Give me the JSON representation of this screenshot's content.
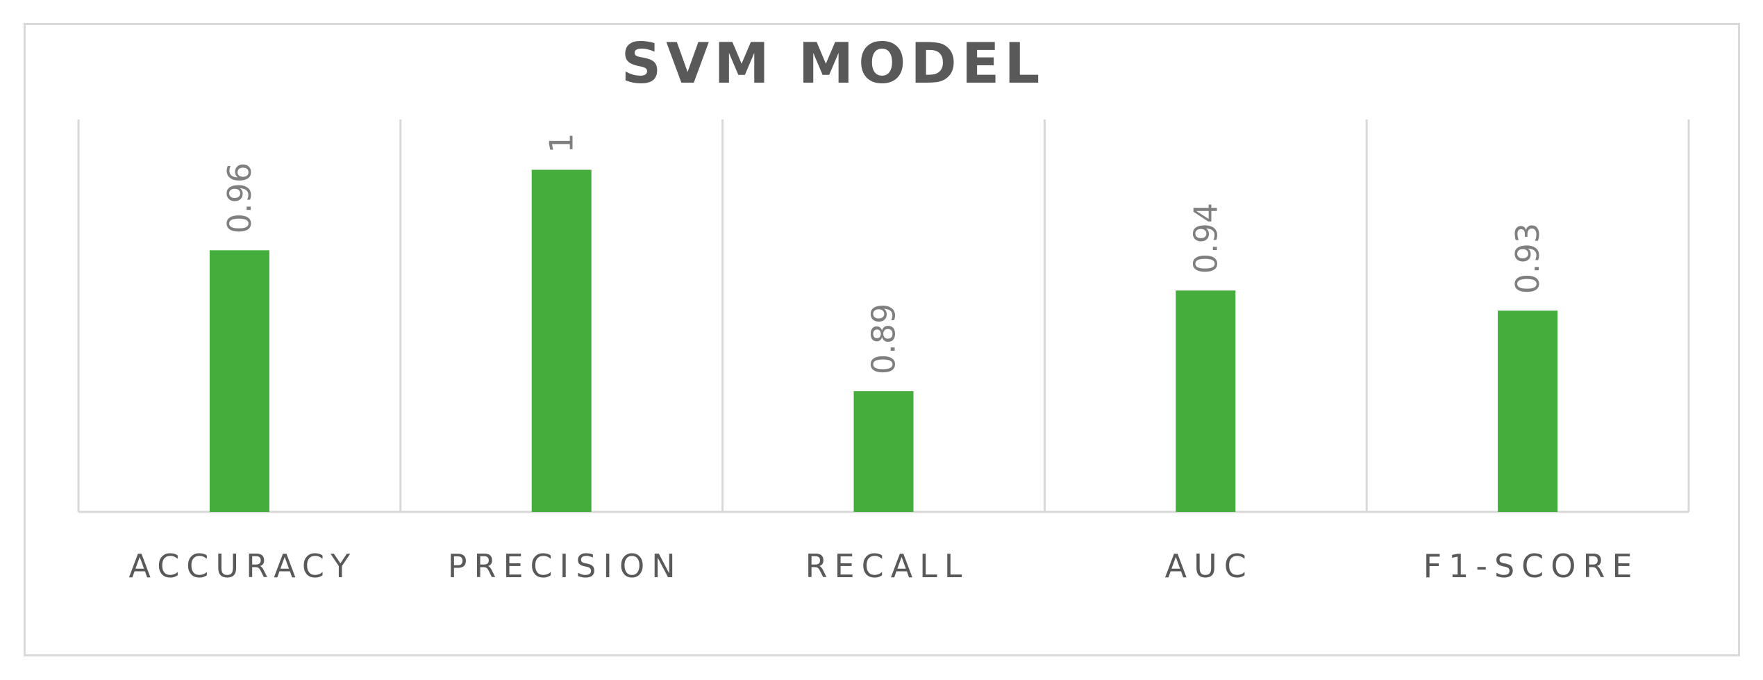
{
  "chart_data": {
    "type": "bar",
    "title": "SVM MODEL",
    "categories": [
      "ACCURACY",
      "PRECISION",
      "RECALL",
      "AUC",
      "F1-SCORE"
    ],
    "values": [
      0.96,
      1,
      0.89,
      0.94,
      0.93
    ],
    "value_labels": [
      "0.96",
      "1",
      "0.89",
      "0.94",
      "0.93"
    ],
    "xlabel": "",
    "ylabel": "",
    "ylim": [
      0.83,
      1.025
    ],
    "y_axis_visible": false,
    "grid": "vertical category separators",
    "legend": "none",
    "bar_color": "#44ad3c",
    "data_label_orientation": "rotated-vertical"
  }
}
